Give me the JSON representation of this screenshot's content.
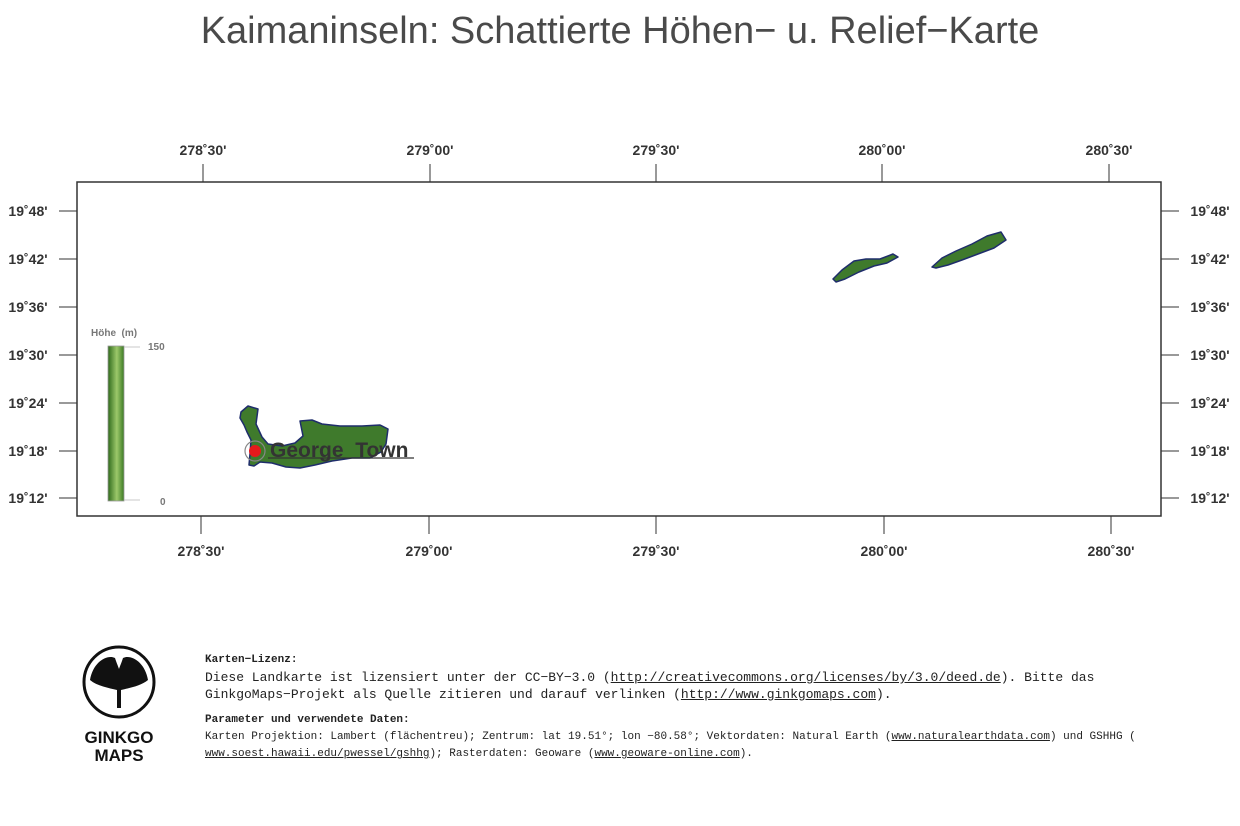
{
  "title": "Kaimaninseln: Schattierte Höhen− u. Relief−Karte",
  "axes": {
    "lon_labels_top": [
      "278˚30'",
      "279˚00'",
      "279˚30'",
      "280˚00'",
      "280˚30'"
    ],
    "lon_labels_bottom": [
      "278˚30'",
      "279˚00'",
      "279˚30'",
      "280˚00'",
      "280˚30'"
    ],
    "lat_labels_left": [
      "19˚48'",
      "19˚42'",
      "19˚36'",
      "19˚30'",
      "19˚24'",
      "19˚18'",
      "19˚12'"
    ],
    "lat_labels_right": [
      "19˚48'",
      "19˚42'",
      "19˚36'",
      "19˚30'",
      "19˚24'",
      "19˚18'",
      "19˚12'"
    ]
  },
  "legend": {
    "title": "Höhe  (m)",
    "max": "150",
    "min": "0",
    "colors": {
      "top": "#c8e0a0",
      "bottom": "#2f6a1c"
    }
  },
  "features": {
    "islands": [
      "Grand Cayman",
      "Little Cayman",
      "Cayman Brac"
    ],
    "land_color": "#3f7a2c",
    "outline_color": "#1f2d6b",
    "city": {
      "name": "George  Town",
      "marker_color": "#e41a1c"
    }
  },
  "footer": {
    "logo_line1": "GINKGO",
    "logo_line2": "MAPS",
    "license_heading": "Karten−Lizenz:",
    "license_text_1": "Diese Landkarte ist lizensiert unter der CC−BY−3.0 (",
    "license_link_1": "http://creativecommons.org/licenses/by/3.0/deed.de",
    "license_text_2": ").  Bitte das",
    "license_text_3": "GinkgoMaps−Projekt als Quelle zitieren und darauf verlinken (",
    "license_link_2": "http://www.ginkgomaps.com",
    "license_text_4": ").",
    "params_heading": "Parameter und verwendete Daten:",
    "params_text_1": "Karten Projektion: Lambert (flächentreu); Zentrum: lat 19.51°; lon −80.58°; Vektordaten: Natural Earth (",
    "params_link_1": "www.naturalearthdata.com",
    "params_text_2": ") und GSHHG (",
    "params_link_2": "www.soest.hawaii.edu/pwessel/gshhg",
    "params_text_3": "); Rasterdaten: Geoware (",
    "params_link_3": "www.geoware-online.com",
    "params_text_4": ")."
  }
}
